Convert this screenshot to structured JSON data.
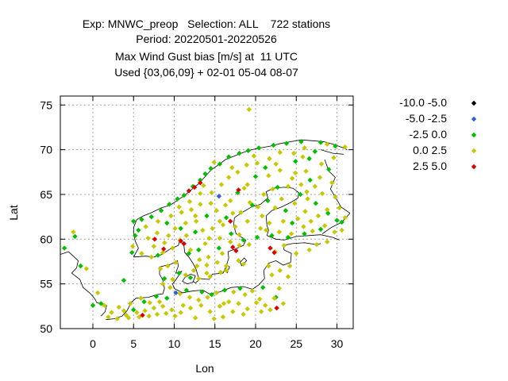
{
  "chart_data": {
    "type": "scatter",
    "title": [
      "Exp: MNWC_preop   Selection: ALL    722 stations",
      "Period: 20220501-20220526",
      "Max Wind Gust bias [m/s] at  11 UTC",
      "Used {03,06,09} + 02-01 05-04 08-07"
    ],
    "xlabel": "Lon",
    "ylabel": "Lat",
    "xlim": [
      -4,
      32
    ],
    "ylim": [
      50,
      76
    ],
    "xticks": [
      "0",
      "5",
      "10",
      "15",
      "20",
      "25",
      "30"
    ],
    "yticks": [
      "50",
      "55",
      "60",
      "65",
      "70",
      "75"
    ],
    "grid": true,
    "legend_position": "top-right, outside",
    "series": [
      {
        "name": "-10.0 -5.0",
        "color": "#000000",
        "points": []
      },
      {
        "name": " -5.0 -2.5",
        "color": "#3060e0",
        "points": [
          [
            15.5,
            64.8
          ],
          [
            10.2,
            54.0
          ]
        ]
      },
      {
        "name": " -2.5 0.0",
        "color": "#00c000",
        "points": [
          [
            -2.2,
            60.3
          ],
          [
            -3.5,
            59.0
          ],
          [
            -1.5,
            57.0
          ],
          [
            1.0,
            52.8
          ],
          [
            3.8,
            55.4
          ],
          [
            4.8,
            58.5
          ],
          [
            5.2,
            60.4
          ],
          [
            5.6,
            61.0
          ],
          [
            5.0,
            62.0
          ],
          [
            6.0,
            62.2
          ],
          [
            7.2,
            62.5
          ],
          [
            8.4,
            63.2
          ],
          [
            9.4,
            63.9
          ],
          [
            10.4,
            64.5
          ],
          [
            11.2,
            64.9
          ],
          [
            12.3,
            65.9
          ],
          [
            13.2,
            66.6
          ],
          [
            13.8,
            67.3
          ],
          [
            14.5,
            67.9
          ],
          [
            15.6,
            68.4
          ],
          [
            16.7,
            69.2
          ],
          [
            18.0,
            69.6
          ],
          [
            19.1,
            69.9
          ],
          [
            20.4,
            70.2
          ],
          [
            22.2,
            70.5
          ],
          [
            23.8,
            70.7
          ],
          [
            25.6,
            70.9
          ],
          [
            28.0,
            70.8
          ],
          [
            29.8,
            70.4
          ],
          [
            27.3,
            69.8
          ],
          [
            24.9,
            68.7
          ],
          [
            21.2,
            68.0
          ],
          [
            20.0,
            67.0
          ],
          [
            17.8,
            65.2
          ],
          [
            22.7,
            65.8
          ],
          [
            25.5,
            65.0
          ],
          [
            27.4,
            64.0
          ],
          [
            28.9,
            62.9
          ],
          [
            30.0,
            62.1
          ],
          [
            26.0,
            60.6
          ],
          [
            24.0,
            60.2
          ],
          [
            22.0,
            60.4
          ],
          [
            20.2,
            60.2
          ],
          [
            18.5,
            59.9
          ],
          [
            17.0,
            60.6
          ],
          [
            15.5,
            59.0
          ],
          [
            13.0,
            58.8
          ],
          [
            11.8,
            58.4
          ],
          [
            8.0,
            58.2
          ],
          [
            9.1,
            61.8
          ],
          [
            10.8,
            61.2
          ],
          [
            12.6,
            60.8
          ],
          [
            14.0,
            62.6
          ],
          [
            16.4,
            62.4
          ],
          [
            19.6,
            63.8
          ],
          [
            21.5,
            64.3
          ],
          [
            23.7,
            63.2
          ],
          [
            24.5,
            61.8
          ],
          [
            28.0,
            61.1
          ],
          [
            30.6,
            61.9
          ],
          [
            26.7,
            66.6
          ],
          [
            29.0,
            67.8
          ],
          [
            26.6,
            69.0
          ],
          [
            6.3,
            53.0
          ],
          [
            7.8,
            53.6
          ],
          [
            9.1,
            53.4
          ],
          [
            11.5,
            54.3
          ],
          [
            13.4,
            54.1
          ],
          [
            14.6,
            53.8
          ],
          [
            16.2,
            54.3
          ],
          [
            18.1,
            54.5
          ],
          [
            20.9,
            54.6
          ],
          [
            22.5,
            53.5
          ],
          [
            0.0,
            52.6
          ],
          [
            5.0,
            52.1
          ],
          [
            8.8,
            55.6
          ],
          [
            10.6,
            56.2
          ],
          [
            12.0,
            55.7
          ]
        ]
      },
      {
        "name": " 0.0 2.5",
        "color": "#c8c800",
        "points": [
          [
            -2.4,
            60.8
          ],
          [
            -0.8,
            56.7
          ],
          [
            0.6,
            54.0
          ],
          [
            1.4,
            52.6
          ],
          [
            1.9,
            51.3
          ],
          [
            3.0,
            51.1
          ],
          [
            4.1,
            51.5
          ],
          [
            5.4,
            51.8
          ],
          [
            6.4,
            52.0
          ],
          [
            7.5,
            52.3
          ],
          [
            8.6,
            52.5
          ],
          [
            9.7,
            52.1
          ],
          [
            10.8,
            51.8
          ],
          [
            12.0,
            52.3
          ],
          [
            13.3,
            52.6
          ],
          [
            14.4,
            51.9
          ],
          [
            15.6,
            52.5
          ],
          [
            16.7,
            53.0
          ],
          [
            17.9,
            52.8
          ],
          [
            19.0,
            52.2
          ],
          [
            20.1,
            52.9
          ],
          [
            21.2,
            52.6
          ],
          [
            22.3,
            53.4
          ],
          [
            23.4,
            52.8
          ],
          [
            4.6,
            52.8
          ],
          [
            5.9,
            53.4
          ],
          [
            7.0,
            52.9
          ],
          [
            8.2,
            53.0
          ],
          [
            9.5,
            54.6
          ],
          [
            10.7,
            53.9
          ],
          [
            11.9,
            53.5
          ],
          [
            13.0,
            53.2
          ],
          [
            14.1,
            53.5
          ],
          [
            15.2,
            54.0
          ],
          [
            17.3,
            54.1
          ],
          [
            19.6,
            54.2
          ],
          [
            22.9,
            54.5
          ],
          [
            8.6,
            55.0
          ],
          [
            9.8,
            55.5
          ],
          [
            11.4,
            56.0
          ],
          [
            12.4,
            56.5
          ],
          [
            9.2,
            57.0
          ],
          [
            10.2,
            57.4
          ],
          [
            8.3,
            56.7
          ],
          [
            6.0,
            58.4
          ],
          [
            7.2,
            58.0
          ],
          [
            8.6,
            58.5
          ],
          [
            9.8,
            59.0
          ],
          [
            10.7,
            59.9
          ],
          [
            11.5,
            60.4
          ],
          [
            6.8,
            60.1
          ],
          [
            7.9,
            60.7
          ],
          [
            9.3,
            60.4
          ],
          [
            10.1,
            61.2
          ],
          [
            11.4,
            61.8
          ],
          [
            12.7,
            62.0
          ],
          [
            8.0,
            62.0
          ],
          [
            9.6,
            62.6
          ],
          [
            10.9,
            63.0
          ],
          [
            12.1,
            63.3
          ],
          [
            13.2,
            63.9
          ],
          [
            14.5,
            64.0
          ],
          [
            15.2,
            63.2
          ],
          [
            16.3,
            63.8
          ],
          [
            17.2,
            62.9
          ],
          [
            18.2,
            63.0
          ],
          [
            19.3,
            64.1
          ],
          [
            20.3,
            63.6
          ],
          [
            21.0,
            65.0
          ],
          [
            22.1,
            65.6
          ],
          [
            14.6,
            65.2
          ],
          [
            15.8,
            66.1
          ],
          [
            16.7,
            66.9
          ],
          [
            17.8,
            67.5
          ],
          [
            18.9,
            68.3
          ],
          [
            20.2,
            68.5
          ],
          [
            21.7,
            69.0
          ],
          [
            23.0,
            69.7
          ],
          [
            24.7,
            69.6
          ],
          [
            26.0,
            70.2
          ],
          [
            28.8,
            70.6
          ],
          [
            31.0,
            70.3
          ],
          [
            29.6,
            69.1
          ],
          [
            28.1,
            68.4
          ],
          [
            26.2,
            67.6
          ],
          [
            24.5,
            66.8
          ],
          [
            23.0,
            67.7
          ],
          [
            21.6,
            67.1
          ],
          [
            19.0,
            66.1
          ],
          [
            18.6,
            65.7
          ],
          [
            24.0,
            65.9
          ],
          [
            25.6,
            66.1
          ],
          [
            27.3,
            65.9
          ],
          [
            28.2,
            65.1
          ],
          [
            29.8,
            64.7
          ],
          [
            26.4,
            64.5
          ],
          [
            24.8,
            64.0
          ],
          [
            23.2,
            64.5
          ],
          [
            22.4,
            63.5
          ],
          [
            26.1,
            63.1
          ],
          [
            27.7,
            62.6
          ],
          [
            25.2,
            62.3
          ],
          [
            23.4,
            62.0
          ],
          [
            21.7,
            61.8
          ],
          [
            21.3,
            61.0
          ],
          [
            22.9,
            60.8
          ],
          [
            24.4,
            60.6
          ],
          [
            25.9,
            61.4
          ],
          [
            27.0,
            60.9
          ],
          [
            28.5,
            61.5
          ],
          [
            29.7,
            60.8
          ],
          [
            30.6,
            61.0
          ],
          [
            17.5,
            61.4
          ],
          [
            16.0,
            61.6
          ],
          [
            14.7,
            61.2
          ],
          [
            13.5,
            61.0
          ],
          [
            14.3,
            60.1
          ],
          [
            15.6,
            60.1
          ],
          [
            16.9,
            59.7
          ],
          [
            18.0,
            59.3
          ],
          [
            19.2,
            59.4
          ],
          [
            15.9,
            58.4
          ],
          [
            14.2,
            58.0
          ],
          [
            13.1,
            57.7
          ],
          [
            12.8,
            57.0
          ],
          [
            14.0,
            57.1
          ],
          [
            15.3,
            57.4
          ],
          [
            16.4,
            57.0
          ],
          [
            17.9,
            57.6
          ],
          [
            18.5,
            57.2
          ],
          [
            16.4,
            56.5
          ],
          [
            14.0,
            56.2
          ],
          [
            13.0,
            55.6
          ],
          [
            14.4,
            55.8
          ],
          [
            15.7,
            56.3
          ],
          [
            21.6,
            57.0
          ],
          [
            23.0,
            56.5
          ],
          [
            24.2,
            57.0
          ],
          [
            25.0,
            58.4
          ],
          [
            26.6,
            58.8
          ],
          [
            22.4,
            58.6
          ],
          [
            23.5,
            59.3
          ],
          [
            27.5,
            59.4
          ],
          [
            28.8,
            59.7
          ],
          [
            24.0,
            55.8
          ],
          [
            22.0,
            56.0
          ],
          [
            19.2,
            74.5
          ],
          [
            31.0,
            62.4
          ],
          [
            30.3,
            63.5
          ],
          [
            29.4,
            66.3
          ],
          [
            28.8,
            63.3
          ],
          [
            26.8,
            62.0
          ],
          [
            20.8,
            62.6
          ],
          [
            19.0,
            62.0
          ],
          [
            13.6,
            66.0
          ],
          [
            17.1,
            68.0
          ],
          [
            19.8,
            69.3
          ],
          [
            22.5,
            68.4
          ],
          [
            25.8,
            69.2
          ],
          [
            14.9,
            68.6
          ],
          [
            13.2,
            65.1
          ],
          [
            11.9,
            64.2
          ],
          [
            10.6,
            63.6
          ],
          [
            12.6,
            62.6
          ],
          [
            15.6,
            62.0
          ],
          [
            16.9,
            64.3
          ],
          [
            20.6,
            61.2
          ],
          [
            18.0,
            60.5
          ],
          [
            24.9,
            67.4
          ],
          [
            27.9,
            66.9
          ],
          [
            26.3,
            65.3
          ],
          [
            12.0,
            58.8
          ],
          [
            13.8,
            59.5
          ],
          [
            8.8,
            59.6
          ],
          [
            7.5,
            59.2
          ],
          [
            6.5,
            61.4
          ],
          [
            4.9,
            59.2
          ],
          [
            2.3,
            51.8
          ],
          [
            3.2,
            52.4
          ],
          [
            6.9,
            51.4
          ],
          [
            10.1,
            51.4
          ],
          [
            12.6,
            51.2
          ],
          [
            16.0,
            51.3
          ],
          [
            17.2,
            51.9
          ],
          [
            18.5,
            51.6
          ],
          [
            20.7,
            51.9
          ],
          [
            21.8,
            52.1
          ],
          [
            20.5,
            53.3
          ],
          [
            18.7,
            53.8
          ],
          [
            16.1,
            52.8
          ],
          [
            14.9,
            51.1
          ],
          [
            11.1,
            52.6
          ],
          [
            9.0,
            51.7
          ],
          [
            7.9,
            51.6
          ],
          [
            5.7,
            51.3
          ],
          [
            4.4,
            51.2
          ],
          [
            3.8,
            52.0
          ]
        ]
      },
      {
        "name": " 2.5 5.0",
        "color": "#e00000",
        "points": [
          [
            12.5,
            65.8
          ],
          [
            13.2,
            66.3
          ],
          [
            11.8,
            65.4
          ],
          [
            17.9,
            65.5
          ],
          [
            16.9,
            62.0
          ],
          [
            7.6,
            60.0
          ],
          [
            10.8,
            59.8
          ],
          [
            11.2,
            59.5
          ],
          [
            17.2,
            59.1
          ],
          [
            17.6,
            58.7
          ],
          [
            8.7,
            58.9
          ],
          [
            21.8,
            59.0
          ],
          [
            6.1,
            51.5
          ],
          [
            22.6,
            52.3
          ],
          [
            22.3,
            58.5
          ]
        ]
      }
    ]
  }
}
